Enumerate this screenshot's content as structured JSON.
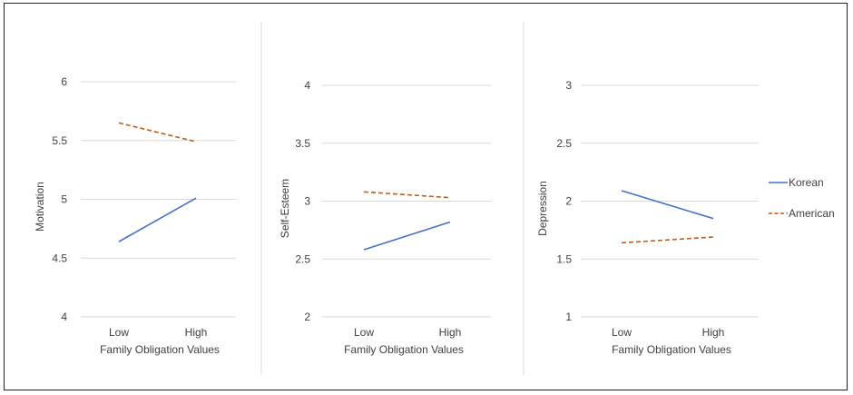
{
  "chart_data": [
    {
      "type": "line",
      "categories": [
        "Low",
        "High"
      ],
      "xlabel": "Family Obligation Values",
      "ylabel": "Motivation",
      "ylim": [
        4,
        6
      ],
      "yticks": [
        "4",
        "4.5",
        "5",
        "5.5",
        "6"
      ],
      "series": [
        {
          "name": "Korean",
          "values": [
            4.64,
            5.01
          ]
        },
        {
          "name": "American",
          "values": [
            5.65,
            5.49
          ]
        }
      ]
    },
    {
      "type": "line",
      "categories": [
        "Low",
        "High"
      ],
      "xlabel": "Family Obligation Values",
      "ylabel": "Self-Esteem",
      "ylim": [
        2,
        4
      ],
      "yticks": [
        "2",
        "2.5",
        "3",
        "3.5",
        "4"
      ],
      "series": [
        {
          "name": "Korean",
          "values": [
            2.58,
            2.82
          ]
        },
        {
          "name": "American",
          "values": [
            3.08,
            3.03
          ]
        }
      ]
    },
    {
      "type": "line",
      "categories": [
        "Low",
        "High"
      ],
      "xlabel": "Family Obligation Values",
      "ylabel": "Depression",
      "ylim": [
        1,
        3
      ],
      "yticks": [
        "1",
        "1.5",
        "2",
        "2.5",
        "3"
      ],
      "series": [
        {
          "name": "Korean",
          "values": [
            2.09,
            1.85
          ]
        },
        {
          "name": "American",
          "values": [
            1.64,
            1.69
          ]
        }
      ]
    }
  ],
  "legend": {
    "placement": "right",
    "items": [
      {
        "label": "Korean",
        "color": "#4472C4",
        "style": "solid"
      },
      {
        "label": "American",
        "color": "#C55A11",
        "style": "dashed"
      }
    ]
  },
  "colors": {
    "gridline": "#d9d9d9",
    "divider": "#d9d9d9",
    "text": "#404040"
  }
}
